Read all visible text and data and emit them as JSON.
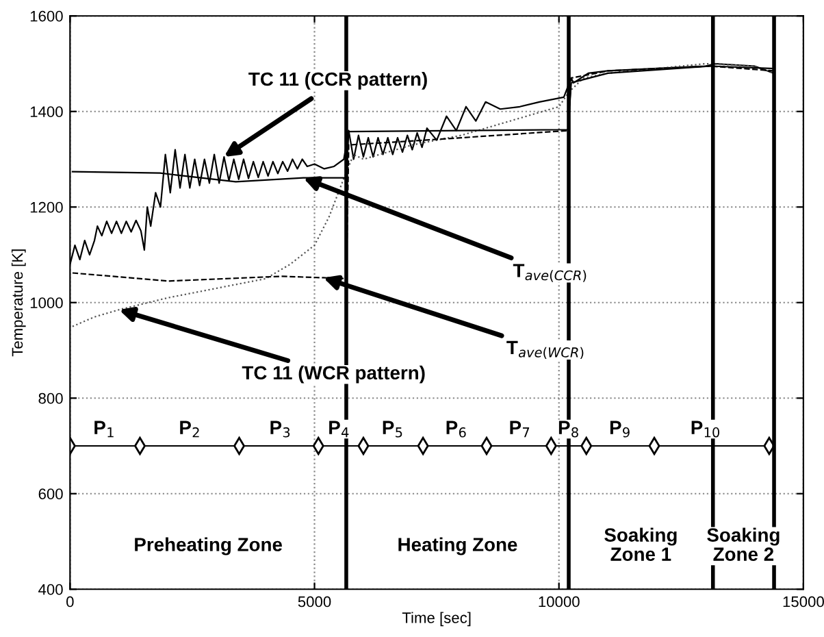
{
  "chart_data": {
    "type": "line",
    "xlabel": "Time [sec]",
    "ylabel": "Temperature [K]",
    "xlim": [
      0,
      15000
    ],
    "xticks": [
      0,
      5000,
      10000,
      15000
    ],
    "ylim": [
      400,
      1600
    ],
    "yticks": [
      400,
      600,
      800,
      1000,
      1200,
      1400,
      1600
    ],
    "grid": true,
    "legend": false,
    "marker": "none",
    "series": [
      {
        "color": "#000000",
        "line_style": "solid",
        "x": [
          0,
          100,
          200,
          300,
          400,
          500,
          560,
          650,
          750,
          850,
          950,
          1050,
          1150,
          1250,
          1350,
          1450,
          1520,
          1580,
          1650,
          1750,
          1850,
          1950,
          2050,
          2150,
          2250,
          2350,
          2450,
          2550,
          2650,
          2750,
          2850,
          2950,
          3050,
          3150,
          3250,
          3350,
          3450,
          3550,
          3650,
          3750,
          3850,
          3950,
          4050,
          4150,
          4250,
          4350,
          4450,
          4550,
          4650,
          4750,
          4850,
          5000,
          5200,
          5400,
          5600,
          5700,
          5800,
          5900,
          6000,
          6100,
          6200,
          6300,
          6400,
          6500,
          6600,
          6700,
          6800,
          6900,
          7000,
          7100,
          7200,
          7300,
          7500,
          7700,
          7900,
          8100,
          8300,
          8500,
          8800,
          9200,
          9600,
          10100,
          10250,
          10300,
          10600,
          11000,
          12000,
          13000,
          13200,
          14000,
          14400
        ],
        "values": [
          1080,
          1120,
          1090,
          1130,
          1100,
          1130,
          1160,
          1140,
          1170,
          1145,
          1170,
          1145,
          1170,
          1148,
          1172,
          1150,
          1110,
          1200,
          1160,
          1230,
          1200,
          1310,
          1230,
          1320,
          1240,
          1310,
          1240,
          1300,
          1245,
          1300,
          1250,
          1310,
          1250,
          1305,
          1255,
          1300,
          1258,
          1300,
          1260,
          1295,
          1262,
          1295,
          1265,
          1295,
          1270,
          1295,
          1275,
          1300,
          1280,
          1300,
          1285,
          1290,
          1280,
          1285,
          1300,
          1360,
          1300,
          1350,
          1305,
          1345,
          1305,
          1345,
          1310,
          1345,
          1310,
          1345,
          1315,
          1350,
          1320,
          1355,
          1325,
          1365,
          1340,
          1390,
          1360,
          1410,
          1380,
          1420,
          1405,
          1410,
          1420,
          1430,
          1470,
          1460,
          1480,
          1485,
          1490,
          1495,
          1500,
          1495,
          1480
        ]
      },
      {
        "color": "#555555",
        "line_style": "dotted",
        "x": [
          50,
          500,
          1000,
          2000,
          3000,
          4000,
          4500,
          5000,
          5300,
          5600,
          5800,
          6000,
          7000,
          8000,
          9000,
          10000,
          10200,
          10500,
          11000,
          12000,
          13000,
          14000,
          14400
        ],
        "values": [
          950,
          970,
          985,
          1010,
          1030,
          1050,
          1080,
          1120,
          1180,
          1260,
          1310,
          1300,
          1330,
          1350,
          1380,
          1410,
          1440,
          1470,
          1480,
          1490,
          1500,
          1495,
          1480
        ]
      },
      {
        "color": "#000000",
        "line_style": "solid",
        "x": [
          50,
          1840,
          3390,
          4770,
          5650,
          5700,
          8000,
          10190,
          10250,
          11000,
          13100,
          14400
        ],
        "values": [
          1274,
          1271,
          1253,
          1261,
          1261,
          1358,
          1360,
          1362,
          1460,
          1480,
          1495,
          1490
        ]
      },
      {
        "color": "#000000",
        "line_style": "dashed",
        "x": [
          50,
          2010,
          4320,
          5180,
          5650,
          5700,
          8000,
          10190,
          10250,
          11000,
          13100,
          14400
        ],
        "values": [
          1062,
          1045,
          1055,
          1052,
          1050,
          1330,
          1345,
          1360,
          1470,
          1485,
          1495,
          1485
        ]
      },
      {
        "color": "#000000",
        "line_style": "solid",
        "marker": "diamond",
        "x": [
          0,
          1430,
          3460,
          5080,
          6000,
          7220,
          8520,
          9840,
          10560,
          11950,
          14300
        ],
        "values": [
          700,
          700,
          700,
          700,
          700,
          700,
          700,
          700,
          700,
          700,
          700
        ]
      }
    ],
    "ref_lines": [
      {
        "axis": "x",
        "value": 5650,
        "color": "#000000"
      },
      {
        "axis": "x",
        "value": 10200,
        "color": "#000000"
      },
      {
        "axis": "x",
        "value": 13150,
        "color": "#000000"
      },
      {
        "axis": "x",
        "value": 14400,
        "color": "#000000"
      }
    ],
    "annotations": [
      {
        "text": "TC 11 (CCR pattern)",
        "x": 3150,
        "y": 1305
      },
      {
        "text": "T$_{ave(CCR)}$",
        "x": 4770,
        "y": 1261
      },
      {
        "text": "T$_{ave(WCR)}$",
        "x": 5180,
        "y": 1052
      },
      {
        "text": "TC 11 (WCR pattern)",
        "x": 1000,
        "y": 985
      },
      "Preheating Zone",
      "Heating Zone",
      "Soaking\nZone 1",
      "Soaking\nZone 2",
      {
        "text": "P$_{1}$",
        "x": 700,
        "y": 735
      },
      {
        "text": "P$_{2}$",
        "x": 2450,
        "y": 735
      },
      {
        "text": "P$_{3}$",
        "x": 4300,
        "y": 735
      },
      {
        "text": "P$_{4}$",
        "x": 5500,
        "y": 735
      },
      {
        "text": "P$_{5}$",
        "x": 6600,
        "y": 735
      },
      {
        "text": "P$_{6}$",
        "x": 7900,
        "y": 735
      },
      {
        "text": "P$_{7}$",
        "x": 9200,
        "y": 735
      },
      {
        "text": "P$_{8}$",
        "x": 10200,
        "y": 735
      },
      {
        "text": "P$_{9}$",
        "x": 11250,
        "y": 735
      },
      {
        "text": "P$_{10}$",
        "x": 13000,
        "y": 735
      }
    ]
  }
}
